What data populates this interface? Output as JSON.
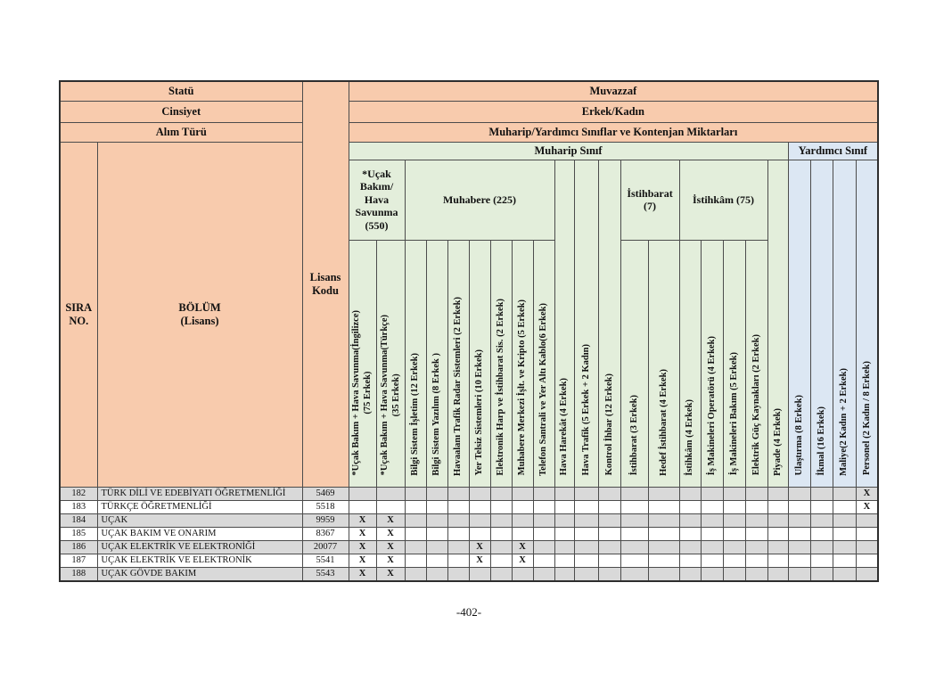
{
  "page": {
    "footer": "-402-"
  },
  "colors": {
    "header_peach": "#f8cbad",
    "muharip_green": "#e3eedb",
    "yardimci_blue": "#dce7f3",
    "shaded_row_grey": "#d9d9d9",
    "border": "#4c4c4c"
  },
  "table": {
    "mark_symbol": "X",
    "header": {
      "left_rows": [
        {
          "label": "Statü"
        },
        {
          "label": "Cinsiyet"
        },
        {
          "label": "Alım Türü"
        }
      ],
      "right_rows": [
        {
          "label": "Muvazzaf"
        },
        {
          "label": "Erkek/Kadın"
        },
        {
          "label": "Muharip/Yardımcı Sınıflar ve Kontenjan Miktarları"
        }
      ],
      "class_row": {
        "muharip": "Muharip Sınıf",
        "yardimci": "Yardımcı Sınıf"
      },
      "sira_no": "SIRA\nNO.",
      "bolum": "BÖLÜM\n(Lisans)",
      "lisans_kodu": "Lisans\nKodu",
      "groups": [
        {
          "label": "*Uçak\nBakım/\nHava\nSavunma\n(550)"
        },
        {
          "label": "Muhabere (225)"
        },
        {
          "label": "İstihbarat\n(7)"
        },
        {
          "label": "İstihkâm (75)"
        }
      ],
      "columns": [
        {
          "label": "*Uçak Bakım + Hava Savunma(İngilizce)\n(75 Erkek)"
        },
        {
          "label": "*Uçak Bakım + Hava Savunma(Türkçe)\n(35 Erkek)"
        },
        {
          "label": "Bilgi Sistem İşletim (12 Erkek)"
        },
        {
          "label": "Bilgi Sistem Yazılım (8 Erkek )"
        },
        {
          "label": "Havaalanı Trafik Radar Sistemleri (2 Erkek)"
        },
        {
          "label": "Yer Telsiz Sistemleri (10 Erkek)"
        },
        {
          "label": "Elektronik Harp ve İstihbarat Sis. (2 Erkek)"
        },
        {
          "label": "Muhabere Merkezi İşlt. ve Kripto (5 Erkek)"
        },
        {
          "label": "Telefon Santrali ve Yer Altı Kablo(6 Erkek)"
        },
        {
          "label": "Hava Harekât (4 Erkek)"
        },
        {
          "label": "Hava Trafik (5 Erkek + 2 Kadın)"
        },
        {
          "label": "Kontrol İhbar (12 Erkek)"
        },
        {
          "label": "İstihbarat (3 Erkek)"
        },
        {
          "label": "Hedef İstihbarat (4 Erkek)"
        },
        {
          "label": "İstihkâm (4 Erkek)"
        },
        {
          "label": "İş Makineleri Operatörü (4 Erkek)"
        },
        {
          "label": "İş Makineleri Bakım (5 Erkek)"
        },
        {
          "label": "Elektrik Güç Kaynakları (2 Erkek)"
        },
        {
          "label": "Piyade (4 Erkek)"
        },
        {
          "label": "Ulaştırma (8 Erkek)"
        },
        {
          "label": "İkmal (16 Erkek)"
        },
        {
          "label": "Maliye(2 Kadın + 2 Erkek)"
        },
        {
          "label": "Personel (2 Kadın / 8 Erkek)"
        }
      ]
    },
    "rows": [
      {
        "sira": "182",
        "bolum": "TÜRK DİLİ VE EDEBİYATI ÖĞRETMENLİĞİ",
        "kod": "5469",
        "marks": [
          22
        ]
      },
      {
        "sira": "183",
        "bolum": "TÜRKÇE ÖĞRETMENLİĞİ",
        "kod": "5518",
        "marks": [
          22
        ]
      },
      {
        "sira": "184",
        "bolum": "UÇAK",
        "kod": "9959",
        "marks": [
          0,
          1
        ]
      },
      {
        "sira": "185",
        "bolum": "UÇAK BAKIM VE ONARIM",
        "kod": "8367",
        "marks": [
          0,
          1
        ]
      },
      {
        "sira": "186",
        "bolum": "UÇAK ELEKTRİK VE ELEKTRONİĞİ",
        "kod": "20077",
        "marks": [
          0,
          1,
          5,
          7
        ]
      },
      {
        "sira": "187",
        "bolum": "UÇAK ELEKTRİK VE ELEKTRONİK",
        "kod": "5541",
        "marks": [
          0,
          1,
          5,
          7
        ]
      },
      {
        "sira": "188",
        "bolum": "UÇAK GÖVDE BAKIM",
        "kod": "5543",
        "marks": [
          0,
          1
        ]
      }
    ]
  }
}
